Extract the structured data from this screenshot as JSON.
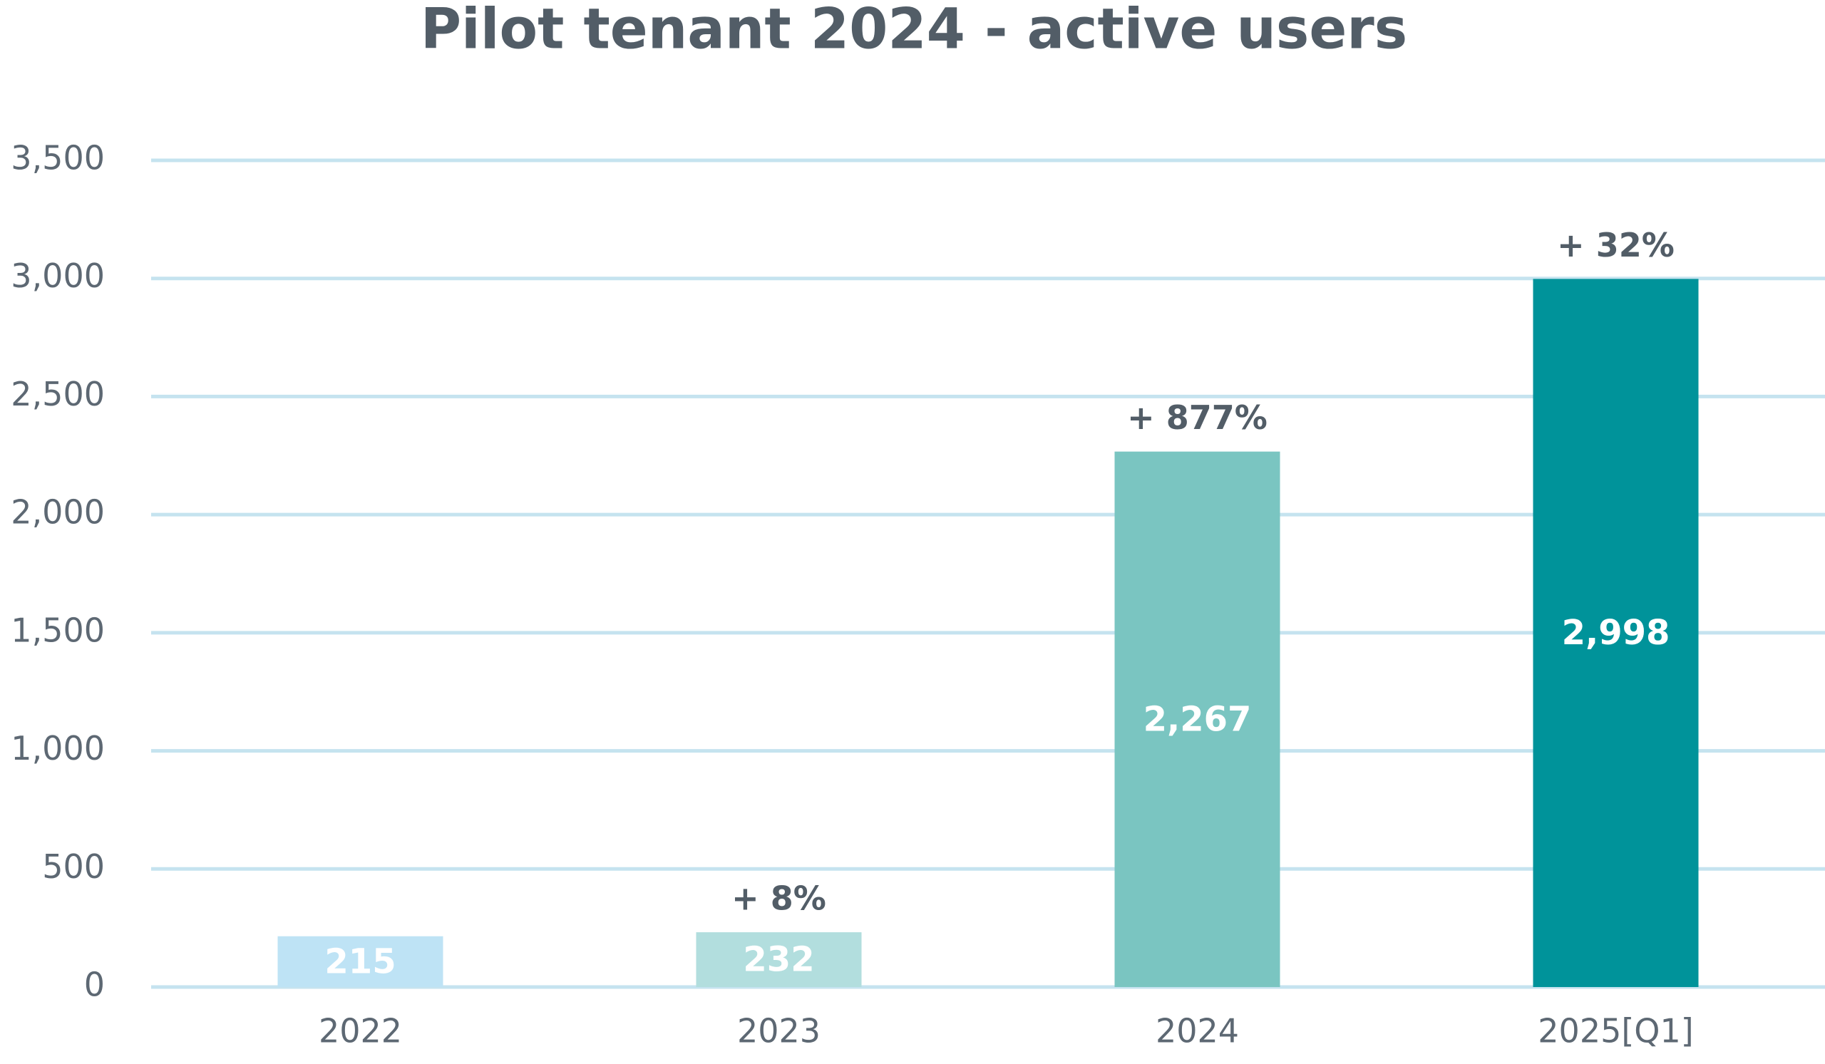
{
  "chart_data": {
    "type": "bar",
    "title": "Pilot tenant 2024 - active users",
    "categories": [
      "2022",
      "2023",
      "2024",
      "2025[Q1]"
    ],
    "values": [
      215,
      232,
      2267,
      2998
    ],
    "value_labels": [
      "215",
      "232",
      "2,267",
      "2,998"
    ],
    "growth_labels": [
      null,
      "+ 8%",
      "+ 877%",
      "+ 32%"
    ],
    "colors": [
      "#bee3f5",
      "#b2dede",
      "#7ac5c1",
      "#00939a"
    ],
    "ylim": [
      0,
      3500
    ],
    "yticks": [
      0,
      500,
      {
        "value": 1000,
        "label": "1,000"
      },
      {
        "value": 1500,
        "label": "1,500"
      },
      {
        "value": 2000,
        "label": "2,000"
      },
      {
        "value": 2500,
        "label": "2,500"
      },
      {
        "value": 3000,
        "label": "3,000"
      },
      {
        "value": 3500,
        "label": "3,500"
      }
    ],
    "grid": true
  }
}
